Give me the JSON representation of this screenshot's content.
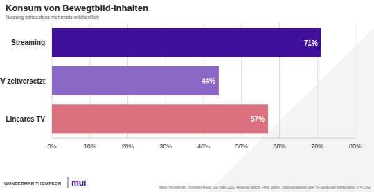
{
  "chart_data": {
    "type": "bar",
    "orientation": "horizontal",
    "title": "Konsum von Bewegtbild-Inhalten",
    "subtitle": "Nutzung mindestens mehrmals wöchentlich",
    "categories": [
      "Streaming",
      "TV zeitversetzt",
      "Lineares TV"
    ],
    "values": [
      71,
      44,
      57
    ],
    "value_labels": [
      "71%",
      "44%",
      "57%"
    ],
    "colors": [
      "#3f0f9c",
      "#8b68c8",
      "#d9707b"
    ],
    "data_labels": true,
    "grid": true,
    "xlim": [
      0,
      80
    ],
    "xticks": [
      {
        "value": 0,
        "label": "0%"
      },
      {
        "value": 10,
        "label": "10%"
      },
      {
        "value": 20,
        "label": "20%"
      },
      {
        "value": 30,
        "label": "30%"
      },
      {
        "value": 40,
        "label": "40%"
      },
      {
        "value": 50,
        "label": "50%"
      },
      {
        "value": 60,
        "label": "60%"
      },
      {
        "value": 70,
        "label": "70%"
      },
      {
        "value": 80,
        "label": "80%"
      }
    ],
    "footnote": "Basis: Wunderman Thompson Media Use Index 2021, Personen welche Filme, Serien, Dokumentationen oder TV-Sendungen konsumieren; n = 1.992",
    "logos": [
      "WUNDERMAN THOMPSON",
      "mui"
    ]
  }
}
